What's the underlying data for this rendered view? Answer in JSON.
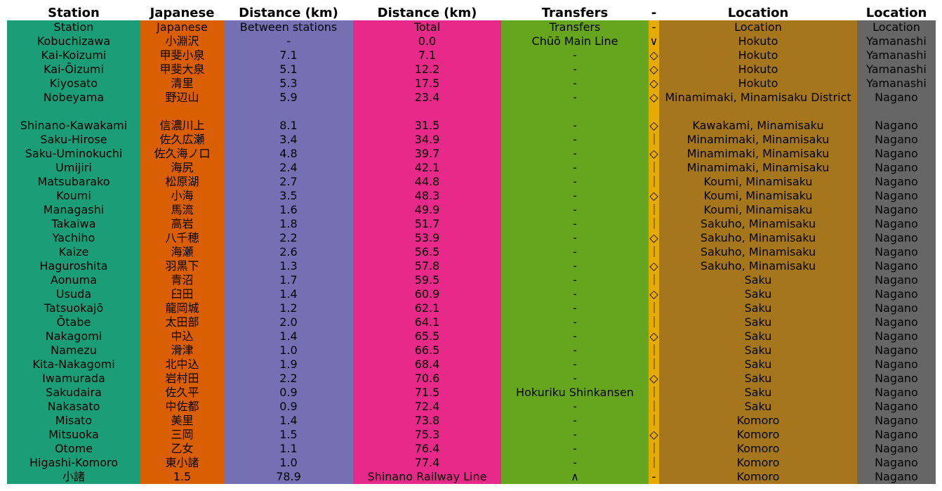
{
  "colors": [
    "#1b9e77",
    "#d95f02",
    "#7570b3",
    "#e7298a",
    "#66a61e",
    "#e6ab02",
    "#a6761d",
    "#666666"
  ],
  "table": {
    "headers": [
      "Station",
      "Japanese",
      "Distance (km)",
      "Distance (km)",
      "Transfers",
      "-",
      "Location",
      "Location"
    ],
    "rows": [
      [
        "Station",
        "Japanese",
        "Between stations",
        "Total",
        "Transfers",
        "-",
        "Location",
        "Location"
      ],
      [
        "Kobuchizawa",
        "小淵沢",
        "-",
        "0.0",
        "Chūō Main Line",
        "∨",
        "Hokuto",
        "Yamanashi"
      ],
      [
        "Kai-Koizumi",
        "甲斐小泉",
        "7.1",
        "7.1",
        "-",
        "◇",
        "Hokuto",
        "Yamanashi"
      ],
      [
        "Kai-Ōizumi",
        "甲斐大泉",
        "5.1",
        "12.2",
        "-",
        "◇",
        "Hokuto",
        "Yamanashi"
      ],
      [
        "Kiyosato",
        "清里",
        "5.3",
        "17.5",
        "-",
        "◇",
        "Hokuto",
        "Yamanashi"
      ],
      [
        "Nobeyama",
        "野辺山",
        "5.9",
        "23.4",
        "-",
        "◇",
        "Minamimaki, Minamisaku District",
        "Nagano"
      ],
      [
        "Shinano-Kawakami",
        "信濃川上",
        "8.1",
        "31.5",
        "-",
        "◇",
        "Kawakami, Minamisaku",
        "Nagano"
      ],
      [
        "Saku-Hirose",
        "佐久広瀬",
        "3.4",
        "34.9",
        "-",
        "｜",
        "Minamimaki, Minamisaku",
        "Nagano"
      ],
      [
        "Saku-Uminokuchi",
        "佐久海ノ口",
        "4.8",
        "39.7",
        "-",
        "◇",
        "Minamimaki, Minamisaku",
        "Nagano"
      ],
      [
        "Umijiri",
        "海尻",
        "2.4",
        "42.1",
        "-",
        "｜",
        "Minamimaki, Minamisaku",
        "Nagano"
      ],
      [
        "Matsubarako",
        "松原湖",
        "2.7",
        "44.8",
        "-",
        "｜",
        "Koumi, Minamisaku",
        "Nagano"
      ],
      [
        "Koumi",
        "小海",
        "3.5",
        "48.3",
        "-",
        "◇",
        "Koumi, Minamisaku",
        "Nagano"
      ],
      [
        "Managashi",
        "馬流",
        "1.6",
        "49.9",
        "-",
        "｜",
        "Koumi, Minamisaku",
        "Nagano"
      ],
      [
        "Takaiwa",
        "高岩",
        "1.8",
        "51.7",
        "-",
        "｜",
        "Sakuho, Minamisaku",
        "Nagano"
      ],
      [
        "Yachiho",
        "八千穂",
        "2.2",
        "53.9",
        "-",
        "◇",
        "Sakuho, Minamisaku",
        "Nagano"
      ],
      [
        "Kaize",
        "海瀬",
        "2.6",
        "56.5",
        "-",
        "｜",
        "Sakuho, Minamisaku",
        "Nagano"
      ],
      [
        "Haguroshita",
        "羽黒下",
        "1.3",
        "57.8",
        "-",
        "◇",
        "Sakuho, Minamisaku",
        "Nagano"
      ],
      [
        "Aonuma",
        "青沼",
        "1.7",
        "59.5",
        "-",
        "｜",
        "Saku",
        "Nagano"
      ],
      [
        "Usuda",
        "臼田",
        "1.4",
        "60.9",
        "-",
        "◇",
        "Saku",
        "Nagano"
      ],
      [
        "Tatsuokajō",
        "龍岡城",
        "1.2",
        "62.1",
        "-",
        "｜",
        "Saku",
        "Nagano"
      ],
      [
        "Ōtabe",
        "太田部",
        "2.0",
        "64.1",
        "-",
        "｜",
        "Saku",
        "Nagano"
      ],
      [
        "Nakagomi",
        "中込",
        "1.4",
        "65.5",
        "-",
        "◇",
        "Saku",
        "Nagano"
      ],
      [
        "Namezu",
        "滑津",
        "1.0",
        "66.5",
        "-",
        "｜",
        "Saku",
        "Nagano"
      ],
      [
        "Kita-Nakagomi",
        "北中込",
        "1.9",
        "68.4",
        "-",
        "｜",
        "Saku",
        "Nagano"
      ],
      [
        "Iwamurada",
        "岩村田",
        "2.2",
        "70.6",
        "-",
        "◇",
        "Saku",
        "Nagano"
      ],
      [
        "Sakudaira",
        "佐久平",
        "0.9",
        "71.5",
        "Hokuriku Shinkansen",
        "｜",
        "Saku",
        "Nagano"
      ],
      [
        "Nakasato",
        "中佐都",
        "0.9",
        "72.4",
        "-",
        "｜",
        "Saku",
        "Nagano"
      ],
      [
        "Misato",
        "美里",
        "1.4",
        "73.8",
        "-",
        "｜",
        "Komoro",
        "Nagano"
      ],
      [
        "Mitsuoka",
        "三岡",
        "1.5",
        "75.3",
        "-",
        "◇",
        "Komoro",
        "Nagano"
      ],
      [
        "Otome",
        "乙女",
        "1.1",
        "76.4",
        "-",
        "｜",
        "Komoro",
        "Nagano"
      ],
      [
        "Higashi-Komoro",
        "東小諸",
        "1.0",
        "77.4",
        "-",
        "｜",
        "Komoro",
        "Nagano"
      ],
      [
        "小諸",
        "1.5",
        "78.9",
        "Shinano Railway Line",
        "∧",
        "-",
        "Komoro",
        "Nagano"
      ]
    ]
  }
}
